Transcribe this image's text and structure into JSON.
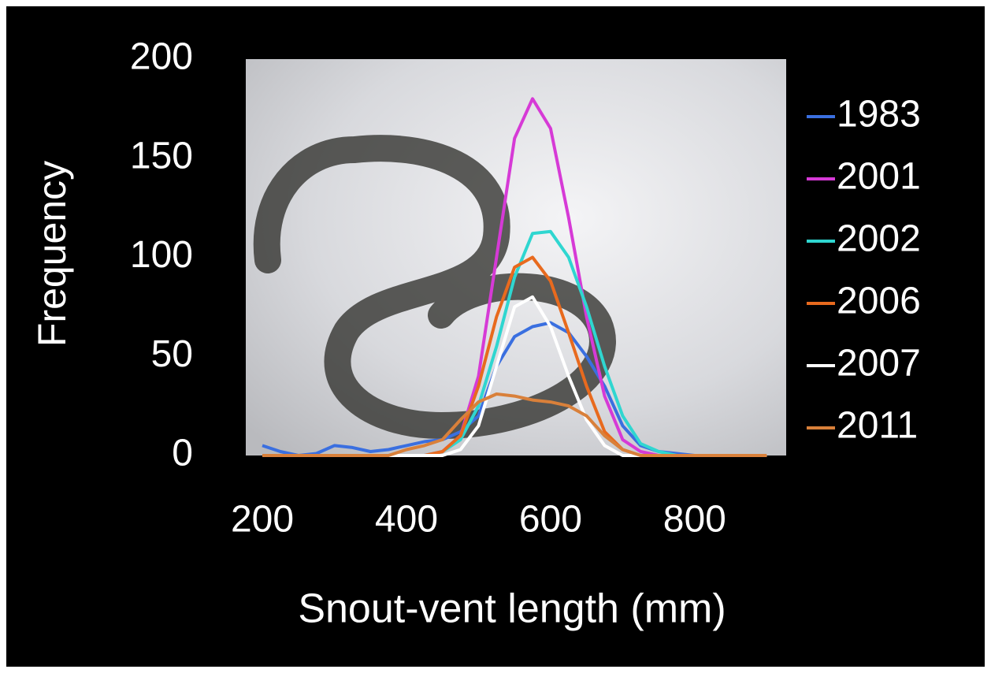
{
  "chart_data": {
    "type": "line",
    "x_label": "Snout-vent length (mm)",
    "y_label": "Frequency",
    "x": [
      200,
      225,
      250,
      275,
      300,
      325,
      350,
      375,
      400,
      425,
      450,
      475,
      500,
      525,
      550,
      575,
      600,
      625,
      650,
      675,
      700,
      725,
      750,
      775,
      800,
      825,
      850,
      875,
      900
    ],
    "series": [
      {
        "name": "1983",
        "color": "#3a6fe0",
        "values": [
          5,
          2,
          0,
          1,
          5,
          4,
          2,
          3,
          5,
          7,
          8,
          12,
          20,
          45,
          60,
          65,
          67,
          62,
          50,
          35,
          15,
          5,
          2,
          1,
          0,
          0,
          0,
          0,
          0
        ]
      },
      {
        "name": "2001",
        "color": "#d63ad6",
        "values": [
          0,
          0,
          0,
          0,
          0,
          0,
          0,
          0,
          0,
          0,
          2,
          10,
          40,
          100,
          160,
          180,
          165,
          120,
          70,
          30,
          8,
          2,
          0,
          0,
          0,
          0,
          0,
          0,
          0
        ]
      },
      {
        "name": "2002",
        "color": "#2fd6d0",
        "values": [
          0,
          0,
          0,
          0,
          0,
          0,
          0,
          0,
          0,
          0,
          2,
          8,
          25,
          55,
          90,
          112,
          113,
          100,
          75,
          45,
          20,
          6,
          2,
          0,
          0,
          0,
          0,
          0,
          0
        ]
      },
      {
        "name": "2006",
        "color": "#e86a1e",
        "values": [
          0,
          0,
          0,
          0,
          0,
          0,
          0,
          0,
          0,
          0,
          2,
          10,
          35,
          70,
          95,
          100,
          88,
          62,
          35,
          12,
          3,
          0,
          0,
          0,
          0,
          0,
          0,
          0,
          0
        ]
      },
      {
        "name": "2007",
        "color": "#ffffff",
        "values": [
          0,
          0,
          0,
          0,
          0,
          0,
          0,
          0,
          0,
          0,
          0,
          3,
          15,
          45,
          75,
          80,
          65,
          40,
          18,
          5,
          0,
          0,
          0,
          0,
          0,
          0,
          0,
          0,
          0
        ]
      },
      {
        "name": "2011",
        "color": "#d9803a",
        "values": [
          0,
          0,
          0,
          0,
          0,
          0,
          0,
          0,
          3,
          5,
          8,
          18,
          27,
          31,
          30,
          28,
          27,
          25,
          20,
          10,
          3,
          0,
          0,
          0,
          0,
          0,
          0,
          0,
          0
        ]
      }
    ],
    "xlim": [
      177,
      927
    ],
    "xticks": [
      200,
      400,
      600,
      800
    ],
    "ylim": [
      0,
      200
    ],
    "yticks": [
      0,
      50,
      100,
      150,
      200
    ],
    "legend": "right"
  }
}
